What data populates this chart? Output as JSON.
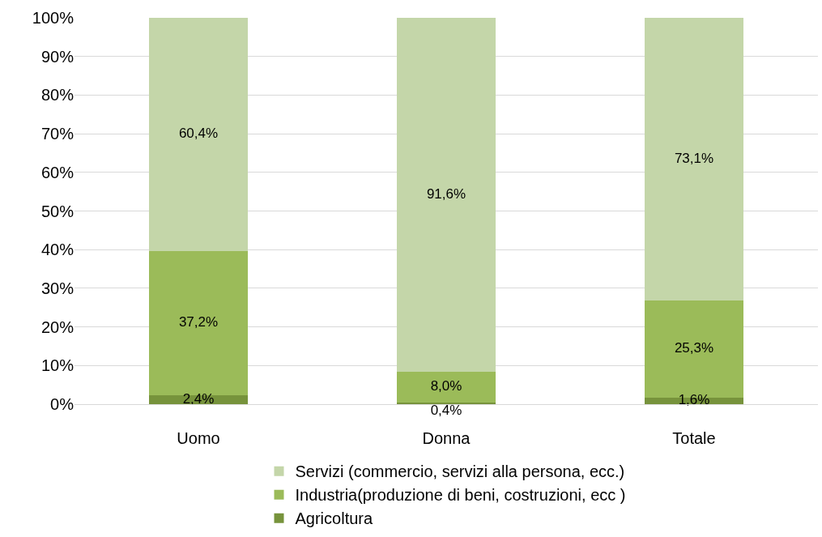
{
  "chart_data": {
    "type": "bar",
    "stacked": true,
    "categories": [
      "Uomo",
      "Donna",
      "Totale"
    ],
    "series": [
      {
        "name": "Agricoltura",
        "color": "#77933c",
        "values": [
          2.4,
          0.4,
          1.6
        ],
        "value_labels": [
          "2,4%",
          "0,4%",
          "1,6%"
        ]
      },
      {
        "name": "Industria(produzione di beni, costruzioni, ecc )",
        "color": "#9bbb59",
        "values": [
          37.2,
          8.0,
          25.3
        ],
        "value_labels": [
          "37,2%",
          "8,0%",
          "25,3%"
        ]
      },
      {
        "name": "Servizi (commercio, servizi alla persona, ecc.)",
        "color": "#c4d6a9",
        "values": [
          60.4,
          91.6,
          73.1
        ],
        "value_labels": [
          "60,4%",
          "91,6%",
          "73,1%"
        ]
      }
    ],
    "ylim": [
      0,
      100
    ],
    "yticks": [
      {
        "value": 0,
        "label": "0%"
      },
      {
        "value": 10,
        "label": "10%"
      },
      {
        "value": 20,
        "label": "20%"
      },
      {
        "value": 30,
        "label": "30%"
      },
      {
        "value": 40,
        "label": "40%"
      },
      {
        "value": 50,
        "label": "50%"
      },
      {
        "value": 60,
        "label": "60%"
      },
      {
        "value": 70,
        "label": "70%"
      },
      {
        "value": 80,
        "label": "80%"
      },
      {
        "value": 90,
        "label": "90%"
      },
      {
        "value": 100,
        "label": "100%"
      }
    ],
    "grid": "y",
    "legend": "bottom"
  }
}
